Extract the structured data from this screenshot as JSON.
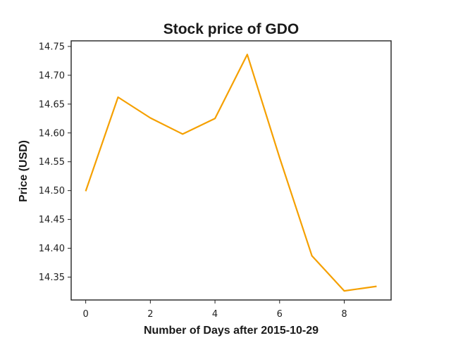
{
  "chart_data": {
    "type": "line",
    "title": "Stock price of GDO",
    "xlabel": "Number of Days after 2015-10-29",
    "ylabel": "Price (USD)",
    "xlim": [
      -0.45,
      9.45
    ],
    "ylim": [
      14.3103,
      14.7597
    ],
    "x_ticks": [
      0,
      2,
      4,
      6,
      8
    ],
    "x_tick_labels": [
      "0",
      "2",
      "4",
      "6",
      "8"
    ],
    "y_ticks": [
      14.35,
      14.4,
      14.45,
      14.5,
      14.55,
      14.6,
      14.65,
      14.7,
      14.75
    ],
    "y_tick_labels": [
      "14.35",
      "14.40",
      "14.45",
      "14.50",
      "14.55",
      "14.60",
      "14.65",
      "14.70",
      "14.75"
    ],
    "grid": false,
    "series": [
      {
        "color": "#f5a000",
        "x": [
          0,
          1,
          2,
          3,
          4,
          5,
          6,
          7,
          8,
          9
        ],
        "y": [
          14.499,
          14.662,
          14.626,
          14.598,
          14.625,
          14.736,
          14.557,
          14.387,
          14.326,
          14.334
        ]
      }
    ]
  }
}
